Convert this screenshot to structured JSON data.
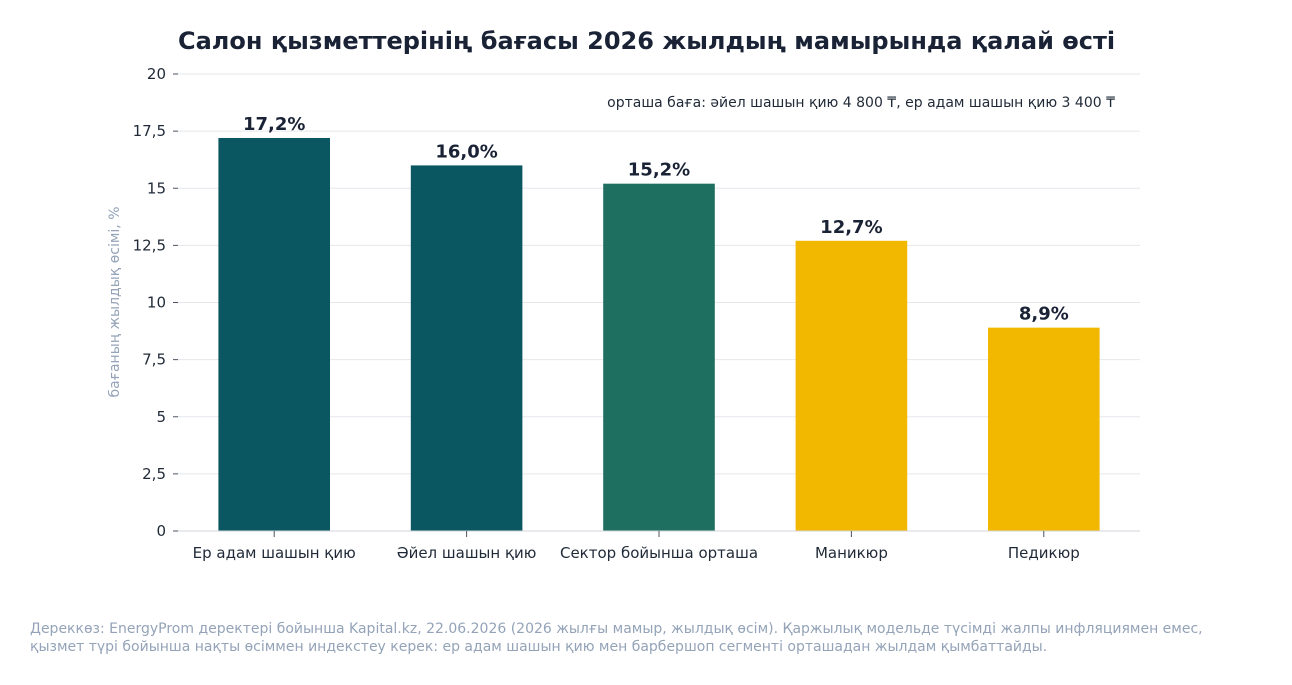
{
  "chart_data": {
    "type": "bar",
    "title": "Салон қызметтерінің бағасы 2026 жылдың мамырында қалай өсті",
    "ylabel": "бағаның жылдық өсімі, %",
    "xlabel": "",
    "ylim": [
      0,
      20
    ],
    "yticks": [
      0,
      2.5,
      5,
      7.5,
      10,
      12.5,
      15,
      17.5,
      20
    ],
    "ytick_labels": [
      "0",
      "2,5",
      "5",
      "7,5",
      "10",
      "12,5",
      "15",
      "17,5",
      "20"
    ],
    "categories": [
      "Ер адам шашын қию",
      "Әйел шашын қию",
      "Сектор бойынша орташа",
      "Маникюр",
      "Педикюр"
    ],
    "values": [
      17.2,
      16.0,
      15.2,
      12.7,
      8.9
    ],
    "value_labels": [
      "17,2%",
      "16,0%",
      "15,2%",
      "12,7%",
      "8,9%"
    ],
    "bar_colors": [
      "#0b5761",
      "#0b5761",
      "#1e6f5f",
      "#f2b800",
      "#f2b800"
    ],
    "grid": true,
    "annotation": "орташа баға: әйел шашын қию 4 800 ₸, ер адам шашын қию 3 400 ₸",
    "source_lines": [
      "Дереккөз: EnergyProm деректері бойынша Kapital.kz, 22.06.2026 (2026 жылғы мамыр, жылдық өсім). Қаржылық модельде түсімді жалпы инфляциямен емес,",
      "қызмет түрі бойынша нақты өсіммен индекстеу керек: ер адам шашын қию мен барбершоп сегменті орташадан жылдам қымбаттайды."
    ]
  }
}
